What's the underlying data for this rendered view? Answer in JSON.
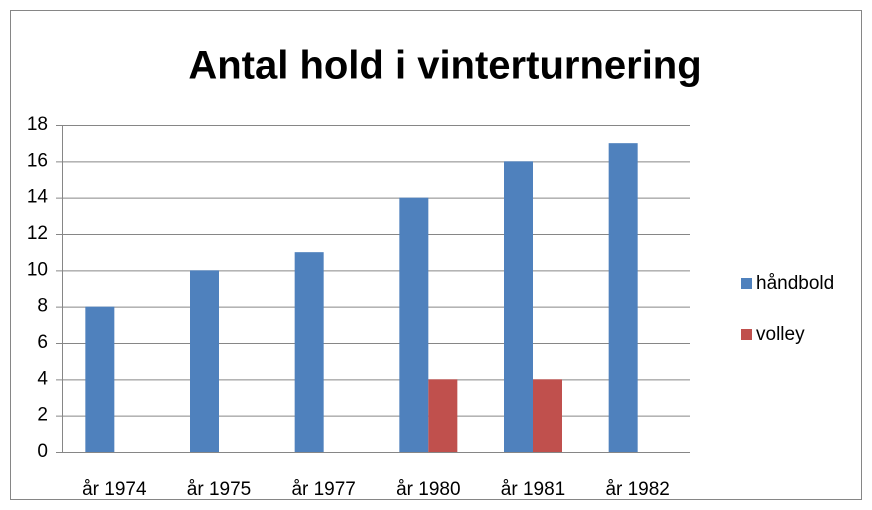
{
  "chart_data": {
    "type": "bar",
    "title": "Antal hold i vinterturnering",
    "categories": [
      "år 1974",
      "år 1975",
      "år 1977",
      "år 1980",
      "år 1981",
      "år 1982"
    ],
    "series": [
      {
        "name": "håndbold",
        "color": "#4f81bd",
        "values": [
          8,
          10,
          11,
          14,
          16,
          17
        ]
      },
      {
        "name": "volley",
        "color": "#c0504d",
        "values": [
          null,
          null,
          null,
          4,
          4,
          null
        ]
      }
    ],
    "ylim": [
      0,
      18
    ],
    "yticks": [
      0,
      2,
      4,
      6,
      8,
      10,
      12,
      14,
      16,
      18
    ],
    "grid": true,
    "legend": "right"
  }
}
